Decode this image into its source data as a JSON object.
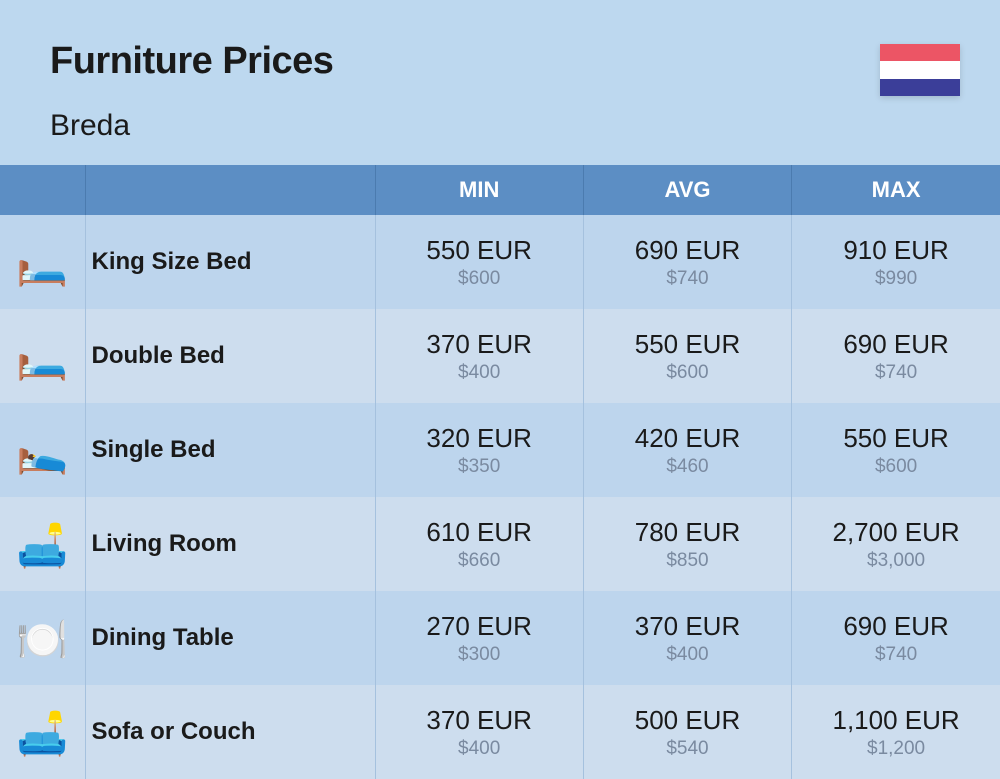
{
  "colors": {
    "page_bg": "#bdd8ef",
    "header_row_bg": "#5c8ec4",
    "header_row_text": "#ffffff",
    "row_even_bg": "#bdd5ed",
    "row_odd_bg": "#cdddee",
    "text_primary": "#1a1a1a",
    "text_secondary": "#7a8aa0",
    "cell_border": "#a5c1de",
    "header_sep": "#4b7baf"
  },
  "flag": {
    "stripes": [
      "#ec5565",
      "#ffffff",
      "#3b3e99"
    ]
  },
  "header": {
    "title": "Furniture Prices",
    "subtitle": "Breda"
  },
  "columns": {
    "min": "MIN",
    "avg": "AVG",
    "max": "MAX"
  },
  "rows": [
    {
      "icon": "🛏️",
      "name": "King Size Bed",
      "min_primary": "550 EUR",
      "min_secondary": "$600",
      "avg_primary": "690 EUR",
      "avg_secondary": "$740",
      "max_primary": "910 EUR",
      "max_secondary": "$990"
    },
    {
      "icon": "🛏️",
      "name": "Double Bed",
      "min_primary": "370 EUR",
      "min_secondary": "$400",
      "avg_primary": "550 EUR",
      "avg_secondary": "$600",
      "max_primary": "690 EUR",
      "max_secondary": "$740"
    },
    {
      "icon": "🛌",
      "name": "Single Bed",
      "min_primary": "320 EUR",
      "min_secondary": "$350",
      "avg_primary": "420 EUR",
      "avg_secondary": "$460",
      "max_primary": "550 EUR",
      "max_secondary": "$600"
    },
    {
      "icon": "🛋️",
      "name": "Living Room",
      "min_primary": "610 EUR",
      "min_secondary": "$660",
      "avg_primary": "780 EUR",
      "avg_secondary": "$850",
      "max_primary": "2,700 EUR",
      "max_secondary": "$3,000"
    },
    {
      "icon": "🍽️",
      "name": "Dining Table",
      "min_primary": "270 EUR",
      "min_secondary": "$300",
      "avg_primary": "370 EUR",
      "avg_secondary": "$400",
      "max_primary": "690 EUR",
      "max_secondary": "$740"
    },
    {
      "icon": "🛋️",
      "name": "Sofa or Couch",
      "min_primary": "370 EUR",
      "min_secondary": "$400",
      "avg_primary": "500 EUR",
      "avg_secondary": "$540",
      "max_primary": "1,100 EUR",
      "max_secondary": "$1,200"
    }
  ]
}
